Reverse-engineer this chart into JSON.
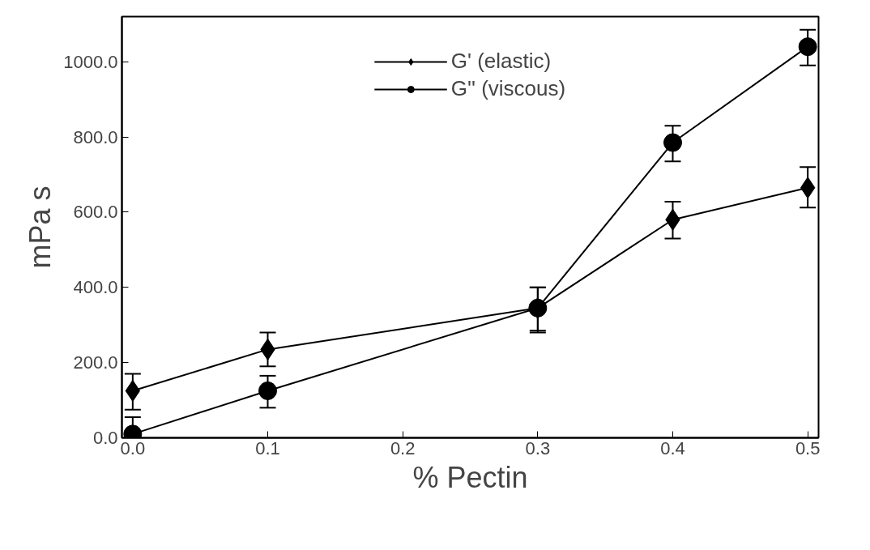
{
  "chart_data": {
    "type": "line",
    "xlabel": "% Pectin",
    "ylabel": "mPa s",
    "x": [
      0.0,
      0.1,
      0.3,
      0.4,
      0.5
    ],
    "xlim": [
      -0.008,
      0.508
    ],
    "ylim": [
      0,
      1120
    ],
    "xticks": [
      {
        "value": 0.0,
        "label": "0.0"
      },
      {
        "value": 0.1,
        "label": "0.1"
      },
      {
        "value": 0.2,
        "label": "0.2"
      },
      {
        "value": 0.3,
        "label": "0.3"
      },
      {
        "value": 0.4,
        "label": "0.4"
      },
      {
        "value": 0.5,
        "label": "0.5"
      }
    ],
    "yticks": [
      {
        "value": 0,
        "label": "0.0"
      },
      {
        "value": 200,
        "label": "200.0"
      },
      {
        "value": 400,
        "label": "400.0"
      },
      {
        "value": 600,
        "label": "600.0"
      },
      {
        "value": 800,
        "label": "800.0"
      },
      {
        "value": 1000,
        "label": "1000.0"
      }
    ],
    "grid": false,
    "legend": "top",
    "series": [
      {
        "name": "G' (elastic)",
        "color": "#000000",
        "marker": "diamond",
        "values": [
          125,
          235,
          345,
          580,
          665
        ],
        "errors": [
          [
            75,
            170
          ],
          [
            190,
            280
          ],
          [
            285,
            400
          ],
          [
            530,
            628
          ],
          [
            612,
            720
          ]
        ]
      },
      {
        "name": "G'' (viscous)",
        "color": "#000000",
        "marker": "circle",
        "values": [
          10,
          125,
          345,
          785,
          1040
        ],
        "errors": [
          [
            0,
            55
          ],
          [
            80,
            165
          ],
          [
            280,
            400
          ],
          [
            735,
            830
          ],
          [
            990,
            1085
          ]
        ]
      }
    ]
  }
}
